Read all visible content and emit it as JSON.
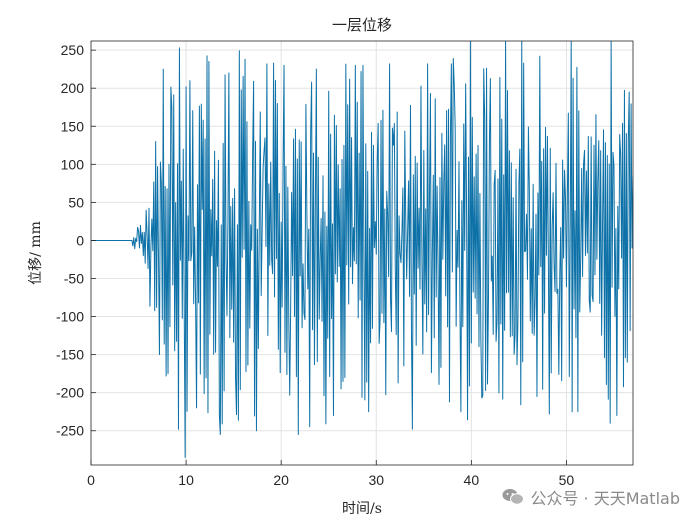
{
  "chart_data": {
    "type": "line",
    "title": "一层位移",
    "xlabel": "时间/s",
    "ylabel": "位移/ mm",
    "xlim": [
      0,
      57
    ],
    "ylim": [
      -295,
      262
    ],
    "x_ticks": [
      0,
      10,
      20,
      30,
      40,
      50
    ],
    "y_ticks": [
      -250,
      -200,
      -150,
      -100,
      -50,
      0,
      50,
      100,
      150,
      200,
      250
    ],
    "grid": true,
    "series": [
      {
        "color": "#0e72a8",
        "sample_interval_s": 0.1,
        "quiet_until_s": 4.3,
        "envelope": [
          [
            4.3,
            5
          ],
          [
            5.5,
            35
          ],
          [
            6.5,
            120
          ],
          [
            8,
            230
          ],
          [
            10,
            265
          ],
          [
            20,
            250
          ],
          [
            40,
            255
          ],
          [
            57,
            240
          ]
        ],
        "peaks": [
          [
            6.8,
            130
          ],
          [
            7.2,
            -150
          ],
          [
            7.6,
            225
          ],
          [
            8.1,
            -175
          ],
          [
            8.5,
            175
          ],
          [
            9.2,
            -248
          ],
          [
            9.3,
            253
          ],
          [
            9.9,
            -285
          ],
          [
            10.4,
            210
          ],
          [
            11.1,
            -220
          ],
          [
            12.4,
            235
          ],
          [
            13.6,
            -255
          ],
          [
            14.5,
            220
          ],
          [
            16.2,
            238
          ],
          [
            17.4,
            -250
          ],
          [
            18.5,
            232
          ],
          [
            20.3,
            230
          ],
          [
            21.8,
            -255
          ],
          [
            23.7,
            225
          ],
          [
            25.5,
            -230
          ],
          [
            27.8,
            230
          ],
          [
            29.2,
            -225
          ],
          [
            31.4,
            232
          ],
          [
            33.8,
            -248
          ],
          [
            35.4,
            232
          ],
          [
            37.9,
            232
          ],
          [
            38.9,
            -225
          ],
          [
            39.9,
            262
          ],
          [
            43.6,
            262
          ],
          [
            45.3,
            262
          ],
          [
            48.2,
            -228
          ],
          [
            50.5,
            262
          ],
          [
            51.2,
            -225
          ],
          [
            54.7,
            262
          ],
          [
            55.3,
            -230
          ],
          [
            56.6,
            195
          ]
        ]
      }
    ]
  },
  "watermark": {
    "text": "公众号 · 天天Matlab",
    "icon": "wechat-icon"
  }
}
